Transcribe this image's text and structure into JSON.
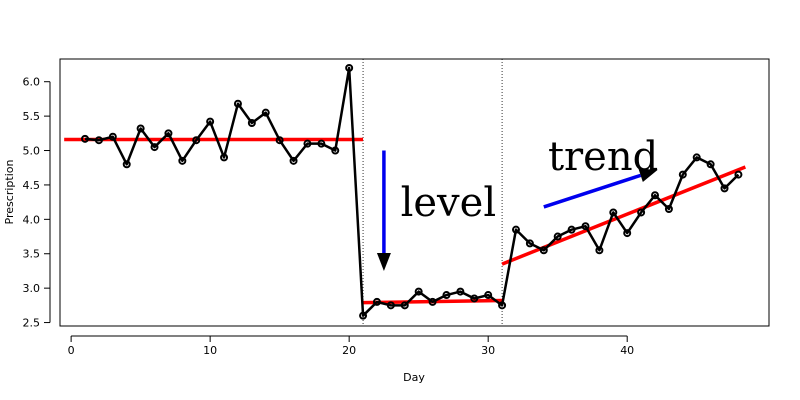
{
  "chart_data": {
    "type": "line",
    "xlabel": "Day",
    "ylabel": "Prescription",
    "xlim": [
      -0.8,
      50.2
    ],
    "ylim": [
      2.45,
      6.33
    ],
    "x_ticks": [
      0,
      10,
      20,
      30,
      40
    ],
    "y_ticks": [
      2.5,
      3.0,
      3.5,
      4.0,
      4.5,
      5.0,
      5.5,
      6.0
    ],
    "x_tick_labels": [
      "0",
      "10",
      "20",
      "30",
      "40"
    ],
    "y_tick_labels": [
      "2.5",
      "3.0",
      "3.5",
      "4.0",
      "4.5",
      "5.0",
      "5.5",
      "6.0"
    ],
    "grid": false,
    "series": [
      {
        "x": [
          1,
          2,
          3,
          4,
          5,
          6,
          7,
          8,
          9,
          10,
          11,
          12,
          13,
          14,
          15,
          16,
          17,
          18,
          19,
          20,
          21,
          22,
          23,
          24,
          25,
          26,
          27,
          28,
          29,
          30,
          31,
          32,
          33,
          34,
          35,
          36,
          37,
          38,
          39,
          40,
          41,
          42,
          43,
          44,
          45,
          46,
          47,
          48
        ],
        "values": [
          5.17,
          5.15,
          5.2,
          4.8,
          5.32,
          5.05,
          5.25,
          4.85,
          5.15,
          5.42,
          4.9,
          5.68,
          5.4,
          5.55,
          5.15,
          4.85,
          5.1,
          5.1,
          5.0,
          6.2,
          2.6,
          2.8,
          2.75,
          2.75,
          2.95,
          2.8,
          2.9,
          2.95,
          2.85,
          2.9,
          2.75,
          3.85,
          3.65,
          3.55,
          3.75,
          3.85,
          3.9,
          3.55,
          4.1,
          3.8,
          4.1,
          4.35,
          4.15,
          4.65,
          4.9,
          4.8,
          4.45,
          4.65
        ],
        "color": "#000000"
      }
    ],
    "fit_lines": [
      {
        "x": [
          -0.5,
          21
        ],
        "y": [
          5.16,
          5.16
        ],
        "color": "#ff0000"
      },
      {
        "x": [
          21,
          31
        ],
        "y": [
          2.79,
          2.82
        ],
        "color": "#ff0000"
      },
      {
        "x": [
          31,
          48.5
        ],
        "y": [
          3.35,
          4.76
        ],
        "color": "#ff0000"
      }
    ],
    "interruptions": [
      21,
      31
    ],
    "annotations": [
      {
        "text": "level",
        "x": 23.7,
        "y": 4.05
      },
      {
        "text": "trend",
        "x": 34.3,
        "y": 4.72
      }
    ],
    "arrows": [
      {
        "from": [
          22.5,
          5.0
        ],
        "to": [
          22.5,
          3.25
        ],
        "color": "#0000ee"
      },
      {
        "from": [
          34,
          4.18
        ],
        "to": [
          42.2,
          4.72
        ],
        "color": "#0000ee"
      }
    ]
  }
}
